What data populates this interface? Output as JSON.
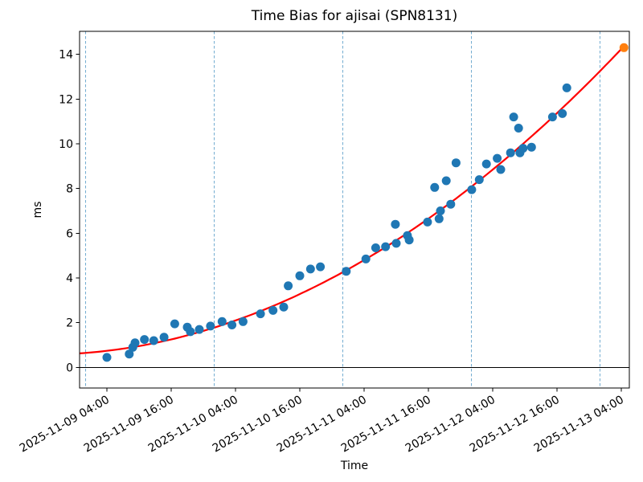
{
  "figure": {
    "background": "#ffffff"
  },
  "chart_data": {
    "type": "scatter",
    "title": "Time Bias for ajisai (SPN8131)",
    "xlabel": "Time",
    "ylabel": "ms",
    "grid": "vertical dashed lines at day boundaries only",
    "legend": "none",
    "time_origin": "2025-11-09 00:00",
    "xlim": [
      "2025-11-08 22:54",
      "2025-11-13 05:30"
    ],
    "ylim": [
      -0.92,
      15.03
    ],
    "x_tick_labels": [
      "2025-11-09 04:00",
      "2025-11-09 16:00",
      "2025-11-10 04:00",
      "2025-11-10 16:00",
      "2025-11-11 04:00",
      "2025-11-11 16:00",
      "2025-11-12 04:00",
      "2025-11-12 16:00",
      "2025-11-13 04:00"
    ],
    "y_ticks": [
      0,
      2,
      4,
      6,
      8,
      10,
      12,
      14
    ],
    "day_gridlines": [
      "2025-11-09 00:00",
      "2025-11-10 00:00",
      "2025-11-11 00:00",
      "2025-11-12 00:00",
      "2025-11-13 00:00"
    ],
    "zero_line": 0,
    "colors": {
      "observed": "#1f77b4",
      "predicted": "#ff7f0e",
      "trend": "#ff0000",
      "day_gridline": "#74add1",
      "axis": "#000000"
    },
    "series": [
      {
        "name": "observed-bias",
        "marker": "circle",
        "color": "#1f77b4",
        "points": [
          [
            "2025-11-09 04:00",
            0.45
          ],
          [
            "2025-11-09 08:10",
            0.6
          ],
          [
            "2025-11-09 08:50",
            0.9
          ],
          [
            "2025-11-09 09:15",
            1.1
          ],
          [
            "2025-11-09 11:00",
            1.25
          ],
          [
            "2025-11-09 12:45",
            1.2
          ],
          [
            "2025-11-09 14:40",
            1.35
          ],
          [
            "2025-11-09 16:40",
            1.95
          ],
          [
            "2025-11-09 19:00",
            1.8
          ],
          [
            "2025-11-09 19:35",
            1.6
          ],
          [
            "2025-11-09 21:15",
            1.7
          ],
          [
            "2025-11-09 23:20",
            1.85
          ],
          [
            "2025-11-10 01:30",
            2.05
          ],
          [
            "2025-11-10 03:20",
            1.9
          ],
          [
            "2025-11-10 05:25",
            2.05
          ],
          [
            "2025-11-10 08:40",
            2.4
          ],
          [
            "2025-11-10 11:00",
            2.55
          ],
          [
            "2025-11-10 13:00",
            2.7
          ],
          [
            "2025-11-10 13:50",
            3.65
          ],
          [
            "2025-11-10 16:00",
            4.1
          ],
          [
            "2025-11-10 18:00",
            4.4
          ],
          [
            "2025-11-10 19:50",
            4.5
          ],
          [
            "2025-11-11 00:40",
            4.3
          ],
          [
            "2025-11-11 04:20",
            4.85
          ],
          [
            "2025-11-11 06:10",
            5.35
          ],
          [
            "2025-11-11 08:00",
            5.4
          ],
          [
            "2025-11-11 09:50",
            6.4
          ],
          [
            "2025-11-11 10:00",
            5.55
          ],
          [
            "2025-11-11 12:05",
            5.9
          ],
          [
            "2025-11-11 12:25",
            5.7
          ],
          [
            "2025-11-11 15:50",
            6.5
          ],
          [
            "2025-11-11 17:10",
            8.05
          ],
          [
            "2025-11-11 18:00",
            6.65
          ],
          [
            "2025-11-11 18:15",
            7.0
          ],
          [
            "2025-11-11 19:20",
            8.35
          ],
          [
            "2025-11-11 20:10",
            7.3
          ],
          [
            "2025-11-11 21:10",
            9.15
          ],
          [
            "2025-11-12 00:05",
            7.95
          ],
          [
            "2025-11-12 01:30",
            8.4
          ],
          [
            "2025-11-12 02:50",
            9.1
          ],
          [
            "2025-11-12 04:50",
            9.35
          ],
          [
            "2025-11-12 05:30",
            8.85
          ],
          [
            "2025-11-12 07:20",
            9.6
          ],
          [
            "2025-11-12 07:55",
            11.2
          ],
          [
            "2025-11-12 08:50",
            10.7
          ],
          [
            "2025-11-12 09:05",
            9.6
          ],
          [
            "2025-11-12 09:40",
            9.8
          ],
          [
            "2025-11-12 11:15",
            9.85
          ],
          [
            "2025-11-12 15:10",
            11.2
          ],
          [
            "2025-11-12 17:00",
            11.35
          ],
          [
            "2025-11-12 17:50",
            12.5
          ]
        ]
      },
      {
        "name": "predicted-bias",
        "marker": "circle",
        "color": "#ff7f0e",
        "points": [
          [
            "2025-11-13 04:30",
            14.3
          ]
        ]
      }
    ],
    "trend_line": {
      "name": "polynomial-fit",
      "color": "#ff0000",
      "model": "quadratic in hours since time_origin: ms = c0 + c1*h + c2*h^2",
      "coefficients": [
        0.648,
        0.0191,
        0.001168
      ],
      "hours_range": [
        -1.1,
        100.45
      ]
    }
  }
}
